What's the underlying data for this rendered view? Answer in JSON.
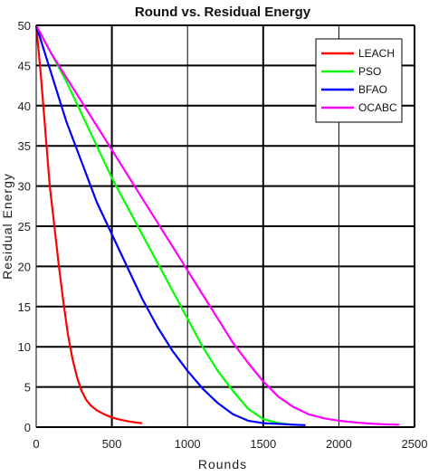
{
  "chart_data": {
    "type": "line",
    "title": "Round vs. Residual Energy",
    "xlabel": "Rounds",
    "ylabel": "Residual Energy",
    "xlim": [
      0,
      2500
    ],
    "ylim": [
      0,
      50
    ],
    "xticks": [
      0,
      500,
      1000,
      1500,
      2000,
      2500
    ],
    "yticks": [
      0,
      5,
      10,
      15,
      20,
      25,
      30,
      35,
      40,
      45,
      50
    ],
    "grid": true,
    "legend_position": "top-right",
    "series": [
      {
        "name": "LEACH",
        "color": "#ff0000",
        "x": [
          0,
          30,
          60,
          90,
          120,
          150,
          180,
          210,
          240,
          270,
          300,
          330,
          360,
          400,
          450,
          500,
          550,
          600,
          650,
          700
        ],
        "y": [
          50,
          44,
          37,
          30,
          25,
          20,
          15.5,
          11.5,
          8.5,
          6.2,
          4.5,
          3.4,
          2.7,
          2.1,
          1.6,
          1.2,
          0.95,
          0.75,
          0.6,
          0.5
        ]
      },
      {
        "name": "PSO",
        "color": "#00ff00",
        "x": [
          0,
          100,
          200,
          300,
          400,
          500,
          600,
          700,
          800,
          900,
          1000,
          1100,
          1200,
          1300,
          1400,
          1500,
          1600,
          1700
        ],
        "y": [
          50,
          46.5,
          43,
          39,
          35,
          31,
          27.5,
          24,
          20.5,
          17,
          13.5,
          10,
          7,
          4.5,
          2.3,
          1,
          0.5,
          0.3
        ]
      },
      {
        "name": "BFAO",
        "color": "#0000ff",
        "x": [
          0,
          100,
          200,
          300,
          400,
          500,
          600,
          700,
          800,
          900,
          1000,
          1100,
          1200,
          1300,
          1400,
          1500,
          1600,
          1700,
          1780
        ],
        "y": [
          50,
          44,
          38,
          33,
          28,
          24,
          20,
          16,
          12.5,
          9.5,
          7,
          4.8,
          3,
          1.6,
          0.8,
          0.5,
          0.4,
          0.3,
          0.25
        ]
      },
      {
        "name": "OCABC",
        "color": "#ff00ff",
        "x": [
          0,
          100,
          200,
          300,
          400,
          500,
          600,
          700,
          800,
          900,
          1000,
          1100,
          1200,
          1300,
          1400,
          1500,
          1600,
          1700,
          1800,
          1900,
          2000,
          2100,
          2200,
          2300,
          2400
        ],
        "y": [
          50,
          46.5,
          43.5,
          40.5,
          37.5,
          34.5,
          31.5,
          28.5,
          25.5,
          22.5,
          19.5,
          16.5,
          13.5,
          10.5,
          8,
          5.7,
          3.8,
          2.5,
          1.6,
          1.1,
          0.8,
          0.6,
          0.45,
          0.35,
          0.3
        ]
      }
    ]
  }
}
